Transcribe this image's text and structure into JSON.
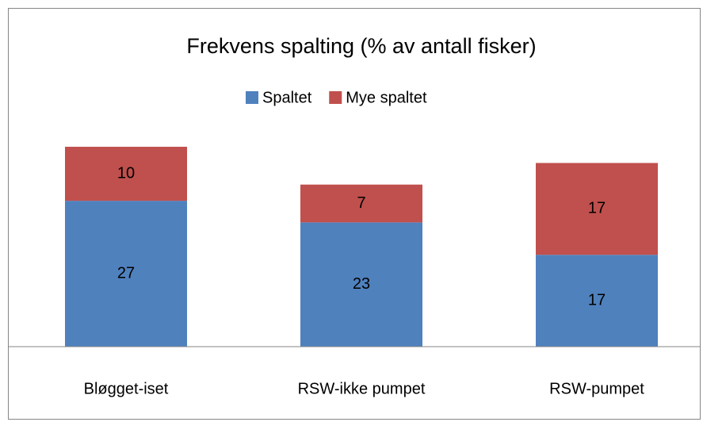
{
  "chart_data": {
    "type": "stacked_bar",
    "title": "Frekvens spalting (% av antall fisker)",
    "categories": [
      "Bløgget-iset",
      "RSW-ikke pumpet",
      "RSW-pumpet"
    ],
    "series": [
      {
        "name": "Spaltet",
        "color": "#4f81bd",
        "values": [
          27,
          23,
          17
        ]
      },
      {
        "name": "Mye spaltet",
        "color": "#c0504d",
        "values": [
          10,
          7,
          17
        ]
      }
    ],
    "legend": "top"
  }
}
